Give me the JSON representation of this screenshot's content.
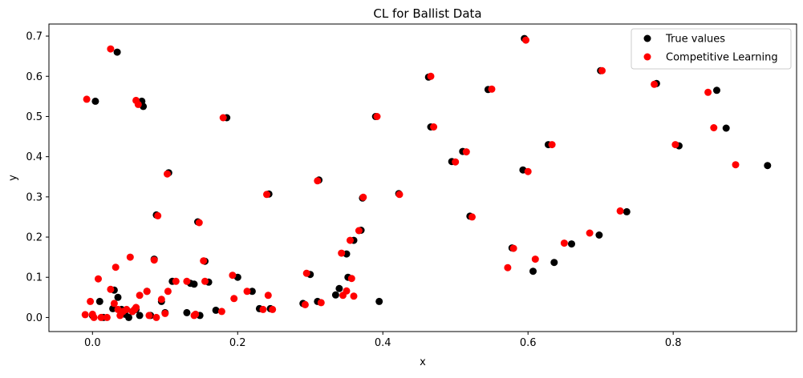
{
  "chart_data": {
    "type": "scatter",
    "title": "CL for Ballist Data",
    "xlabel": "x",
    "ylabel": "y",
    "xlim": [
      -0.06,
      0.97
    ],
    "ylim": [
      -0.035,
      0.73
    ],
    "xticks": [
      0.0,
      0.2,
      0.4,
      0.6,
      0.8
    ],
    "xtick_labels": [
      "0.0",
      "0.2",
      "0.4",
      "0.6",
      "0.8"
    ],
    "yticks": [
      0.0,
      0.1,
      0.2,
      0.3,
      0.4,
      0.5,
      0.6,
      0.7
    ],
    "ytick_labels": [
      "0.0",
      "0.1",
      "0.2",
      "0.3",
      "0.4",
      "0.5",
      "0.6",
      "0.7"
    ],
    "grid": false,
    "legend_position": "top-right",
    "series": [
      {
        "name": "True values",
        "color": "#000000",
        "points": [
          [
            0.0,
            0.005
          ],
          [
            0.004,
            0.538
          ],
          [
            0.01,
            0.04
          ],
          [
            0.015,
            0.0
          ],
          [
            0.028,
            0.022
          ],
          [
            0.03,
            0.068
          ],
          [
            0.034,
            0.66
          ],
          [
            0.035,
            0.05
          ],
          [
            0.04,
            0.02
          ],
          [
            0.045,
            0.008
          ],
          [
            0.05,
            0.0
          ],
          [
            0.055,
            0.015
          ],
          [
            0.06,
            0.02
          ],
          [
            0.065,
            0.005
          ],
          [
            0.068,
            0.538
          ],
          [
            0.07,
            0.525
          ],
          [
            0.075,
            0.065
          ],
          [
            0.08,
            0.005
          ],
          [
            0.085,
            0.145
          ],
          [
            0.088,
            0.255
          ],
          [
            0.095,
            0.04
          ],
          [
            0.1,
            0.012
          ],
          [
            0.105,
            0.36
          ],
          [
            0.11,
            0.09
          ],
          [
            0.13,
            0.012
          ],
          [
            0.135,
            0.085
          ],
          [
            0.14,
            0.083
          ],
          [
            0.145,
            0.238
          ],
          [
            0.148,
            0.005
          ],
          [
            0.155,
            0.14
          ],
          [
            0.16,
            0.088
          ],
          [
            0.17,
            0.018
          ],
          [
            0.185,
            0.497
          ],
          [
            0.2,
            0.1
          ],
          [
            0.22,
            0.065
          ],
          [
            0.23,
            0.022
          ],
          [
            0.243,
            0.307
          ],
          [
            0.245,
            0.022
          ],
          [
            0.29,
            0.035
          ],
          [
            0.3,
            0.107
          ],
          [
            0.31,
            0.04
          ],
          [
            0.312,
            0.342
          ],
          [
            0.335,
            0.056
          ],
          [
            0.34,
            0.072
          ],
          [
            0.35,
            0.158
          ],
          [
            0.352,
            0.1
          ],
          [
            0.36,
            0.192
          ],
          [
            0.37,
            0.217
          ],
          [
            0.372,
            0.297
          ],
          [
            0.39,
            0.5
          ],
          [
            0.395,
            0.04
          ],
          [
            0.422,
            0.308
          ],
          [
            0.463,
            0.598
          ],
          [
            0.466,
            0.474
          ],
          [
            0.495,
            0.388
          ],
          [
            0.51,
            0.413
          ],
          [
            0.52,
            0.252
          ],
          [
            0.545,
            0.567
          ],
          [
            0.578,
            0.173
          ],
          [
            0.593,
            0.367
          ],
          [
            0.595,
            0.694
          ],
          [
            0.607,
            0.115
          ],
          [
            0.628,
            0.43
          ],
          [
            0.636,
            0.137
          ],
          [
            0.66,
            0.183
          ],
          [
            0.698,
            0.205
          ],
          [
            0.7,
            0.614
          ],
          [
            0.736,
            0.263
          ],
          [
            0.777,
            0.582
          ],
          [
            0.808,
            0.427
          ],
          [
            0.86,
            0.565
          ],
          [
            0.873,
            0.471
          ],
          [
            0.93,
            0.378
          ]
        ]
      },
      {
        "name": "Competitive Learning",
        "color": "#ff0000",
        "points": [
          [
            -0.01,
            0.007
          ],
          [
            -0.008,
            0.543
          ],
          [
            -0.003,
            0.04
          ],
          [
            0.0,
            0.008
          ],
          [
            0.002,
            0.0
          ],
          [
            0.008,
            0.096
          ],
          [
            0.012,
            0.0
          ],
          [
            0.02,
            0.0
          ],
          [
            0.025,
            0.668
          ],
          [
            0.025,
            0.07
          ],
          [
            0.03,
            0.035
          ],
          [
            0.032,
            0.125
          ],
          [
            0.035,
            0.02
          ],
          [
            0.038,
            0.005
          ],
          [
            0.042,
            0.015
          ],
          [
            0.047,
            0.02
          ],
          [
            0.052,
            0.15
          ],
          [
            0.055,
            0.015
          ],
          [
            0.058,
            0.02
          ],
          [
            0.06,
            0.025
          ],
          [
            0.06,
            0.54
          ],
          [
            0.063,
            0.53
          ],
          [
            0.065,
            0.055
          ],
          [
            0.075,
            0.065
          ],
          [
            0.078,
            0.005
          ],
          [
            0.085,
            0.143
          ],
          [
            0.088,
            0.0
          ],
          [
            0.09,
            0.253
          ],
          [
            0.095,
            0.045
          ],
          [
            0.1,
            0.01
          ],
          [
            0.103,
            0.357
          ],
          [
            0.104,
            0.065
          ],
          [
            0.115,
            0.09
          ],
          [
            0.13,
            0.09
          ],
          [
            0.14,
            0.005
          ],
          [
            0.142,
            0.008
          ],
          [
            0.147,
            0.236
          ],
          [
            0.153,
            0.141
          ],
          [
            0.155,
            0.09
          ],
          [
            0.178,
            0.015
          ],
          [
            0.18,
            0.497
          ],
          [
            0.193,
            0.105
          ],
          [
            0.195,
            0.047
          ],
          [
            0.213,
            0.065
          ],
          [
            0.235,
            0.02
          ],
          [
            0.24,
            0.306
          ],
          [
            0.242,
            0.055
          ],
          [
            0.248,
            0.02
          ],
          [
            0.293,
            0.032
          ],
          [
            0.295,
            0.11
          ],
          [
            0.31,
            0.34
          ],
          [
            0.315,
            0.037
          ],
          [
            0.343,
            0.16
          ],
          [
            0.345,
            0.055
          ],
          [
            0.35,
            0.066
          ],
          [
            0.355,
            0.192
          ],
          [
            0.357,
            0.097
          ],
          [
            0.36,
            0.053
          ],
          [
            0.367,
            0.216
          ],
          [
            0.373,
            0.299
          ],
          [
            0.392,
            0.5
          ],
          [
            0.423,
            0.306
          ],
          [
            0.466,
            0.6
          ],
          [
            0.47,
            0.474
          ],
          [
            0.5,
            0.387
          ],
          [
            0.515,
            0.412
          ],
          [
            0.523,
            0.25
          ],
          [
            0.55,
            0.568
          ],
          [
            0.572,
            0.124
          ],
          [
            0.58,
            0.172
          ],
          [
            0.597,
            0.69
          ],
          [
            0.6,
            0.363
          ],
          [
            0.61,
            0.145
          ],
          [
            0.633,
            0.43
          ],
          [
            0.65,
            0.185
          ],
          [
            0.685,
            0.21
          ],
          [
            0.702,
            0.614
          ],
          [
            0.727,
            0.265
          ],
          [
            0.774,
            0.58
          ],
          [
            0.803,
            0.43
          ],
          [
            0.848,
            0.56
          ],
          [
            0.856,
            0.472
          ],
          [
            0.886,
            0.38
          ]
        ]
      }
    ]
  }
}
